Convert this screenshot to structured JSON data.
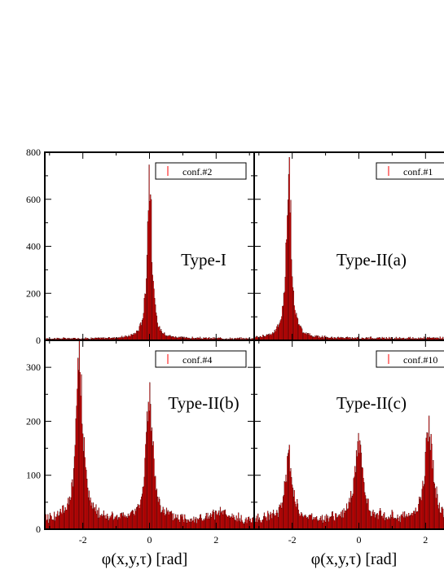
{
  "chart_data": {
    "type": "bar",
    "xlabel": "φ(x,y,τ) [rad]",
    "xlim": [
      -3.1416,
      3.1416
    ],
    "x_ticks": [
      -2,
      0,
      2
    ],
    "bar_color": "#ff0000",
    "bar_outline_color": "#000000",
    "panels": [
      {
        "id": "top-left",
        "legend": "conf.#2",
        "label": "Type-I",
        "ylim": [
          0,
          800
        ],
        "y_ticks": [
          0,
          200,
          400,
          600,
          800
        ],
        "background": 8,
        "peaks": [
          {
            "x": 0.0,
            "height": 780,
            "width": 0.08
          }
        ]
      },
      {
        "id": "top-right",
        "legend": "conf.#1",
        "label": "Type-II(a)",
        "ylim": [
          0,
          800
        ],
        "y_ticks": [
          0,
          200,
          400,
          600,
          800
        ],
        "background": 10,
        "peaks": [
          {
            "x": -2.1,
            "height": 760,
            "width": 0.09
          }
        ]
      },
      {
        "id": "bottom-left",
        "legend": "conf.#4",
        "label": "Type-II(b)",
        "ylim": [
          0,
          350
        ],
        "y_ticks": [
          0,
          100,
          200,
          300
        ],
        "background": 18,
        "peaks": [
          {
            "x": -2.1,
            "height": 325,
            "width": 0.12
          },
          {
            "x": 0.0,
            "height": 250,
            "width": 0.12
          },
          {
            "x": 2.1,
            "height": 15,
            "width": 0.25
          }
        ]
      },
      {
        "id": "bottom-right",
        "legend": "conf.#10",
        "label": "Type-II(c)",
        "ylim": [
          0,
          350
        ],
        "y_ticks": [
          0,
          100,
          200,
          300
        ],
        "background": 20,
        "peaks": [
          {
            "x": -2.1,
            "height": 135,
            "width": 0.12
          },
          {
            "x": 0.0,
            "height": 165,
            "width": 0.13
          },
          {
            "x": 2.1,
            "height": 200,
            "width": 0.13
          }
        ]
      }
    ]
  }
}
